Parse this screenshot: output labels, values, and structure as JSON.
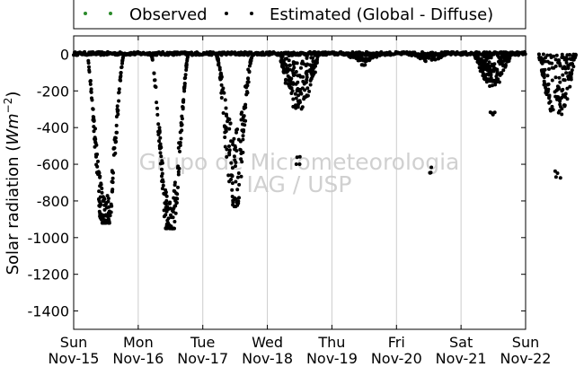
{
  "chart_data": {
    "type": "scatter",
    "ylabel_prefix": "Solar radiation (",
    "ylabel_unit": "Wm",
    "ylabel_exp": "−2",
    "ylabel_suffix": ")",
    "ylim": [
      -1500,
      100
    ],
    "y_ticks": [
      0,
      -200,
      -400,
      -600,
      -800,
      -1000,
      -1200,
      -1400
    ],
    "xlim": [
      "2015-11-15",
      "2015-11-22"
    ],
    "x_ticks": [
      {
        "day": "Sun",
        "date": "Nov-15"
      },
      {
        "day": "Mon",
        "date": "Nov-16"
      },
      {
        "day": "Tue",
        "date": "Nov-17"
      },
      {
        "day": "Wed",
        "date": "Nov-18"
      },
      {
        "day": "Thu",
        "date": "Nov-19"
      },
      {
        "day": "Fri",
        "date": "Nov-20"
      },
      {
        "day": "Sat",
        "date": "Nov-21"
      },
      {
        "day": "Sun",
        "date": "Nov-22"
      }
    ],
    "grid": "vertical-x-only",
    "legend_placement": "top-center",
    "series": [
      {
        "name": "Observed",
        "color": "#2a8a2a",
        "values": []
      },
      {
        "name": "Estimated (Global - Diffuse)",
        "color": "#000000",
        "segments": [
          {
            "day": "2015-11-15",
            "shape": "deep-valley",
            "peak": -920
          },
          {
            "day": "2015-11-16",
            "shape": "deep-valley",
            "peak": -950
          },
          {
            "day": "2015-11-17",
            "shape": "valley",
            "peak": -830
          },
          {
            "day": "2015-11-18",
            "shape": "shallow",
            "peak": -600
          },
          {
            "day": "2015-11-19",
            "shape": "near-zero",
            "peak": -60
          },
          {
            "day": "2015-11-20",
            "shape": "near-zero",
            "peak": -650
          },
          {
            "day": "2015-11-21",
            "shape": "partial",
            "peak": -330
          },
          {
            "day": "2015-11-22",
            "shape": "partial",
            "peak": -680
          }
        ]
      }
    ]
  },
  "watermark": {
    "line1": "Grupo de Micrometeorologia",
    "line2": "IAG / USP"
  }
}
